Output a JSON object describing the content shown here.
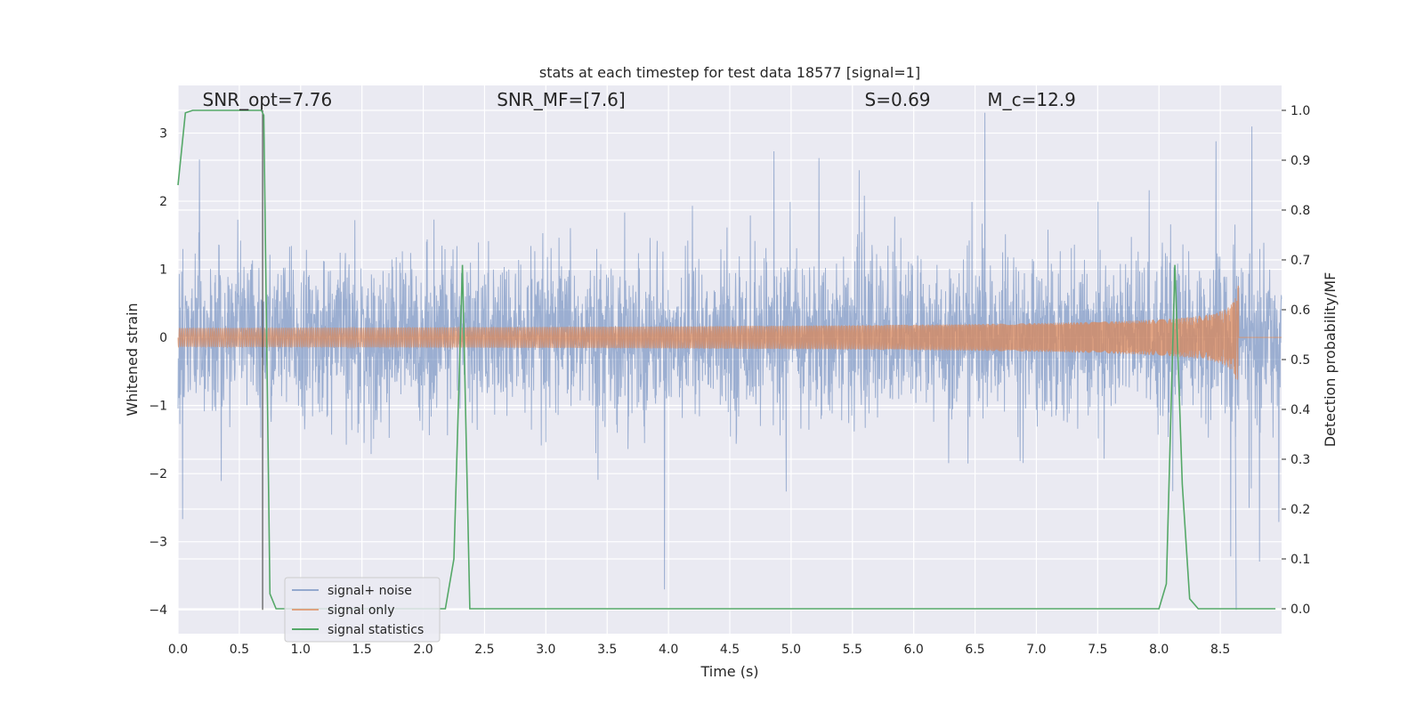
{
  "chart_data": {
    "type": "line",
    "title": "stats at each timestep for test data 18577 [signal=1]",
    "xlabel": "Time (s)",
    "ylabel_left": "Whitened strain",
    "ylabel_right": "Detection probability/MF",
    "xlim": [
      0,
      9.0
    ],
    "ylim_left": [
      -4.35,
      3.7
    ],
    "ylim_right": [
      -0.05,
      1.05
    ],
    "x_ticks": [
      0,
      0.5,
      1.0,
      1.5,
      2.0,
      2.5,
      3.0,
      3.5,
      4.0,
      4.5,
      5.0,
      5.5,
      6.0,
      6.5,
      7.0,
      7.5,
      8.0,
      8.5
    ],
    "x_tick_labels": [
      "0.0",
      "0.5",
      "1.0",
      "1.5",
      "2.0",
      "2.5",
      "3.0",
      "3.5",
      "4.0",
      "4.5",
      "5.0",
      "5.5",
      "6.0",
      "6.5",
      "7.0",
      "7.5",
      "8.0",
      "8.5"
    ],
    "y_left_ticks": [
      3,
      2,
      1,
      0,
      -1,
      -2,
      -3,
      -4
    ],
    "y_left_tick_labels": [
      "3",
      "2",
      "1",
      "0",
      "−1",
      "−2",
      "−3",
      "−4"
    ],
    "y_right_ticks": [
      1.0,
      0.9,
      0.8,
      0.7,
      0.6,
      0.5,
      0.4,
      0.3,
      0.2,
      0.1,
      0.0
    ],
    "y_right_tick_labels": [
      "1.0",
      "0.9",
      "0.8",
      "0.7",
      "0.6",
      "0.5",
      "0.4",
      "0.3",
      "0.2",
      "0.1",
      "0.0"
    ],
    "grid": true,
    "legend_position": "lower-left",
    "annotations": [
      {
        "text": "SNR_opt=7.76",
        "x": 0.2,
        "y": 3.4
      },
      {
        "text": "SNR_MF=[7.6]",
        "x": 2.6,
        "y": 3.4
      },
      {
        "text": "S=0.69",
        "x": 5.6,
        "y": 3.4
      },
      {
        "text": "M_c=12.9",
        "x": 6.6,
        "y": 3.4
      }
    ],
    "vertical_line_x": 0.69,
    "series": [
      {
        "name": "signal+ noise",
        "color": "#4c72b0",
        "axis": "left",
        "description_envelope": {
          "typical_amplitude": 1.1,
          "peak_amplitude": 3.3,
          "min_value": -4.0
        }
      },
      {
        "name": "signal only",
        "color": "#dd8452",
        "axis": "left",
        "chirp_end_time": 8.65,
        "chirp_peak_amplitude": 0.95
      },
      {
        "name": "signal statistics",
        "color": "#55a868",
        "axis": "right",
        "x": [
          0.0,
          0.06,
          0.12,
          0.2,
          0.3,
          0.4,
          0.5,
          0.6,
          0.68,
          0.7,
          0.75,
          0.8,
          0.9,
          1.0,
          1.5,
          2.0,
          2.1,
          2.18,
          2.25,
          2.32,
          2.38,
          2.45,
          3.0,
          5.0,
          7.0,
          7.9,
          8.0,
          8.06,
          8.13,
          8.19,
          8.25,
          8.32,
          8.45,
          8.8,
          8.95
        ],
        "values": [
          0.85,
          0.995,
          1.0,
          1.0,
          1.0,
          1.0,
          1.0,
          1.0,
          1.0,
          0.99,
          0.03,
          0.0,
          0.0,
          0.0,
          0.0,
          0.0,
          0.0,
          0.0,
          0.1,
          0.69,
          0.0,
          0.0,
          0.0,
          0.0,
          0.0,
          0.0,
          0.0,
          0.05,
          0.69,
          0.25,
          0.02,
          0.0,
          0.0,
          0.0,
          0.0
        ]
      }
    ]
  }
}
